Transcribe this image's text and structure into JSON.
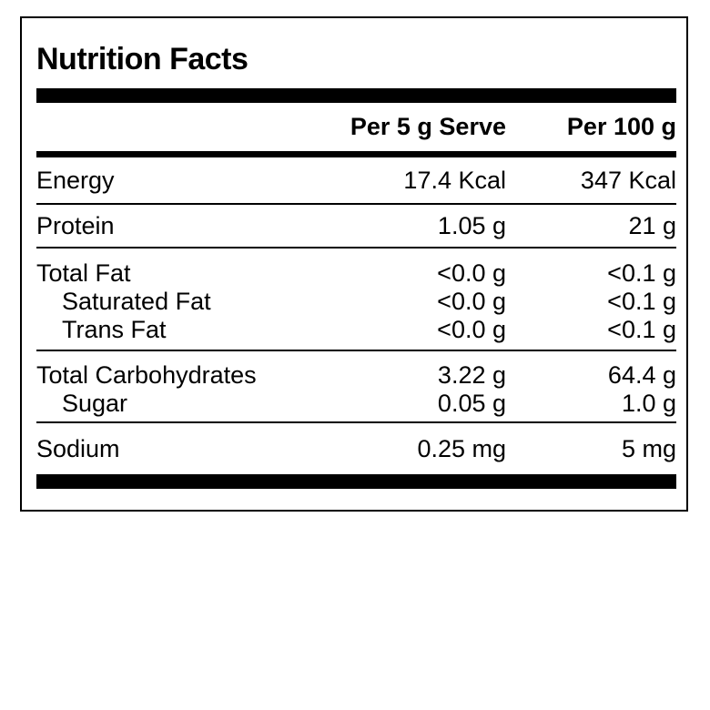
{
  "label": {
    "title": "Nutrition Facts",
    "columns": {
      "per_serve": "Per 5 g Serve",
      "per_100g": "Per 100 g"
    },
    "groups": [
      {
        "items": [
          {
            "name": "Energy",
            "per_serve": "17.4 Kcal",
            "per_100g": "347 Kcal"
          }
        ]
      },
      {
        "items": [
          {
            "name": "Protein",
            "per_serve": "1.05 g",
            "per_100g": "21 g"
          }
        ]
      },
      {
        "items": [
          {
            "name": "Total Fat",
            "per_serve": "<0.0 g",
            "per_100g": "<0.1 g"
          },
          {
            "name": "Saturated Fat",
            "per_serve": "<0.0 g",
            "per_100g": "<0.1 g"
          },
          {
            "name": "Trans Fat",
            "per_serve": "<0.0 g",
            "per_100g": "<0.1 g"
          }
        ]
      },
      {
        "items": [
          {
            "name": "Total Carbohydrates",
            "per_serve": "3.22 g",
            "per_100g": "64.4 g"
          },
          {
            "name": "Sugar",
            "per_serve": "0.05 g",
            "per_100g": "1.0 g"
          }
        ]
      },
      {
        "items": [
          {
            "name": "Sodium",
            "per_serve": "0.25 mg",
            "per_100g": "5 mg"
          }
        ]
      }
    ],
    "colors": {
      "text": "#000000",
      "background": "#ffffff",
      "border": "#000000"
    }
  }
}
